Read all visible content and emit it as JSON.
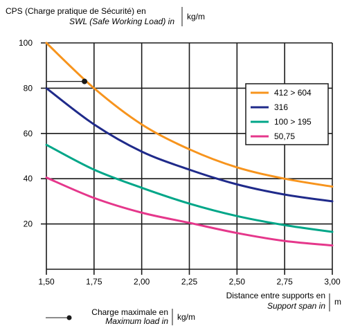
{
  "chart_data": {
    "type": "line",
    "ylabel_line1": "CPS (Charge pratique de Sécurité) en",
    "ylabel_line2": "SWL (Safe Working Load) in",
    "yunit": "kg/m",
    "xlabel_line1": "Distance entre supports en",
    "xlabel_line2": "Support span in",
    "xunit": "m",
    "xlim": [
      1.5,
      3.0
    ],
    "ylim": [
      0,
      100
    ],
    "x_ticks": [
      1.5,
      1.75,
      2.0,
      2.25,
      2.5,
      2.75,
      3.0
    ],
    "x_tick_labels": [
      "1,50",
      "1,75",
      "2,00",
      "2,25",
      "2,50",
      "2,75",
      "3,00"
    ],
    "y_ticks": [
      20,
      40,
      60,
      80,
      100
    ],
    "y_tick_labels": [
      "20",
      "40",
      "60",
      "80",
      "100"
    ],
    "grid": true,
    "legend_position": "top-right",
    "x": [
      1.5,
      1.75,
      2.0,
      2.25,
      2.5,
      2.75,
      3.0
    ],
    "series": [
      {
        "name": "412 > 604",
        "color": "#f7941d",
        "values": [
          100,
          80,
          64,
          53,
          45,
          40,
          36.5
        ]
      },
      {
        "name": "316",
        "color": "#1f2a8a",
        "values": [
          80,
          64,
          52,
          44,
          37.5,
          33,
          30
        ]
      },
      {
        "name": "100 > 195",
        "color": "#00a688",
        "values": [
          55,
          44,
          36,
          29,
          23.5,
          19.5,
          16.5
        ]
      },
      {
        "name": "50,75",
        "color": "#e5378b",
        "values": [
          40.5,
          31.5,
          25,
          20.5,
          16,
          12.5,
          10.5
        ]
      }
    ],
    "marker": {
      "x": 1.7,
      "y": 83
    },
    "marker_label_line1": "Charge maximale en",
    "marker_label_line2": "Maximum load in",
    "marker_unit": "kg/m"
  }
}
